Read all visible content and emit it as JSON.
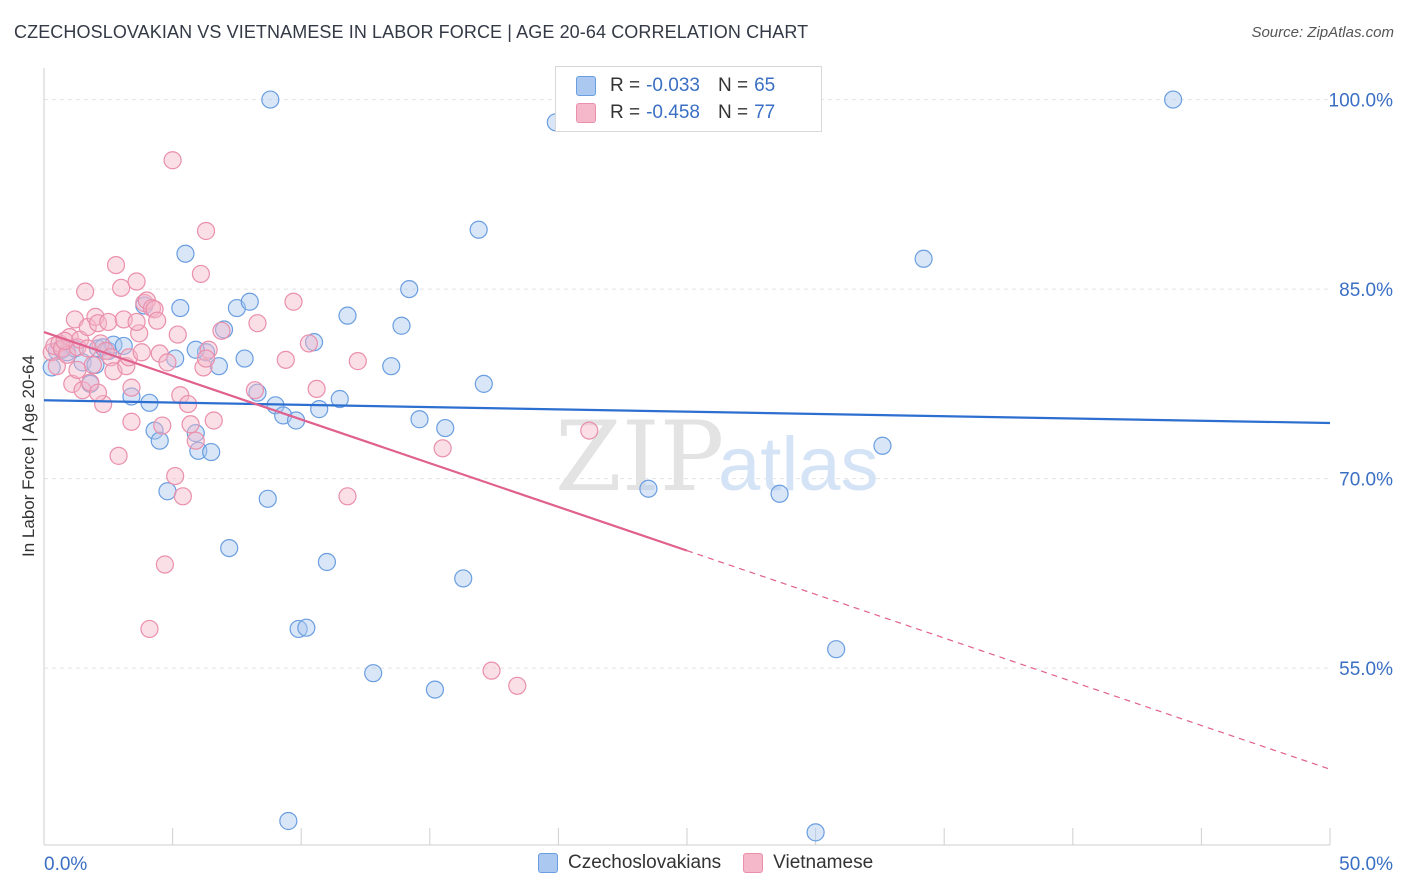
{
  "header": {
    "title": "CZECHOSLOVAKIAN VS VIETNAMESE IN LABOR FORCE | AGE 20-64 CORRELATION CHART",
    "source": "Source: ZipAtlas.com"
  },
  "legend": {
    "czech": {
      "r_label": "R =",
      "r_value": "-0.033",
      "n_label": "N =",
      "n_value": "65"
    },
    "viet": {
      "r_label": "R =",
      "r_value": "-0.458",
      "n_label": "N =",
      "n_value": "77"
    }
  },
  "bottom_legend": {
    "czech": "Czechoslovakians",
    "viet": "Vietnamese"
  },
  "colors": {
    "czech_fill": "#aac8f0",
    "czech_stroke": "#6a9ee0",
    "czech_line": "#2d6fd0",
    "viet_fill": "#f5b7ca",
    "viet_stroke": "#ea8fac",
    "viet_line": "#e0608e",
    "axis_text": "#3a6fc4",
    "grid": "#e2e2e2"
  },
  "watermark": {
    "part1": "ZIP",
    "part2": "atlas"
  },
  "chart_data": {
    "type": "scatter",
    "title": "CZECHOSLOVAKIAN VS VIETNAMESE IN LABOR FORCE | AGE 20-64 CORRELATION CHART",
    "xlabel": "",
    "ylabel": "In Labor Force | Age 20-64",
    "xlim": [
      0,
      50
    ],
    "ylim": [
      41,
      102.5
    ],
    "x_tick_labels": [
      "0.0%",
      "50.0%"
    ],
    "y_ticks": [
      55,
      70,
      85,
      100
    ],
    "y_tick_labels": [
      "55.0%",
      "70.0%",
      "85.0%",
      "100.0%"
    ],
    "series": [
      {
        "name": "Czechoslovakians",
        "r": -0.033,
        "n": 65,
        "trend": {
          "x0": 0,
          "y0": 76.2,
          "x1": 50,
          "y1": 74.4,
          "dashed_from": null
        },
        "points": [
          [
            0.3,
            78.8
          ],
          [
            0.5,
            80.1
          ],
          [
            0.7,
            80.2
          ],
          [
            0.9,
            80.0
          ],
          [
            1.2,
            80.3
          ],
          [
            1.5,
            79.2
          ],
          [
            1.8,
            77.5
          ],
          [
            2.0,
            79.0
          ],
          [
            2.1,
            80.3
          ],
          [
            2.3,
            80.4
          ],
          [
            2.5,
            80.1
          ],
          [
            2.7,
            80.6
          ],
          [
            3.1,
            80.5
          ],
          [
            3.4,
            76.5
          ],
          [
            3.9,
            83.7
          ],
          [
            4.1,
            76.0
          ],
          [
            4.3,
            73.8
          ],
          [
            4.5,
            73.0
          ],
          [
            4.8,
            69.0
          ],
          [
            5.1,
            79.5
          ],
          [
            5.3,
            83.5
          ],
          [
            5.5,
            87.8
          ],
          [
            5.9,
            73.6
          ],
          [
            6.0,
            72.2
          ],
          [
            6.3,
            80.0
          ],
          [
            6.5,
            72.1
          ],
          [
            6.8,
            78.9
          ],
          [
            7.0,
            81.8
          ],
          [
            7.2,
            64.5
          ],
          [
            7.5,
            83.5
          ],
          [
            7.8,
            79.5
          ],
          [
            8.0,
            84.0
          ],
          [
            8.3,
            76.8
          ],
          [
            8.7,
            68.4
          ],
          [
            8.8,
            100.0
          ],
          [
            9.0,
            75.8
          ],
          [
            9.3,
            75.0
          ],
          [
            9.5,
            42.9
          ],
          [
            9.8,
            74.6
          ],
          [
            9.9,
            58.1
          ],
          [
            10.2,
            58.2
          ],
          [
            10.5,
            80.8
          ],
          [
            10.7,
            75.5
          ],
          [
            11.0,
            63.4
          ],
          [
            11.5,
            76.3
          ],
          [
            11.8,
            82.9
          ],
          [
            12.8,
            54.6
          ],
          [
            13.5,
            78.9
          ],
          [
            13.9,
            82.1
          ],
          [
            14.2,
            85.0
          ],
          [
            14.6,
            74.7
          ],
          [
            15.2,
            53.3
          ],
          [
            15.6,
            74.0
          ],
          [
            16.3,
            62.1
          ],
          [
            16.9,
            89.7
          ],
          [
            17.1,
            77.5
          ],
          [
            19.9,
            98.2
          ],
          [
            23.5,
            69.2
          ],
          [
            28.6,
            68.8
          ],
          [
            30.0,
            42.0
          ],
          [
            30.8,
            56.5
          ],
          [
            32.6,
            72.6
          ],
          [
            34.2,
            87.4
          ],
          [
            43.9,
            100.0
          ],
          [
            5.9,
            80.2
          ]
        ]
      },
      {
        "name": "Vietnamese",
        "r": -0.458,
        "n": 77,
        "trend": {
          "x0": 0,
          "y0": 81.6,
          "x1": 50,
          "y1": 47.0,
          "dashed_from": 25.0
        },
        "points": [
          [
            0.3,
            80.0
          ],
          [
            0.4,
            80.5
          ],
          [
            0.5,
            78.9
          ],
          [
            0.6,
            80.7
          ],
          [
            0.7,
            80.3
          ],
          [
            0.9,
            79.8
          ],
          [
            1.0,
            81.2
          ],
          [
            1.1,
            77.5
          ],
          [
            1.2,
            82.6
          ],
          [
            1.3,
            80.4
          ],
          [
            1.4,
            81.0
          ],
          [
            1.5,
            77.0
          ],
          [
            1.6,
            84.8
          ],
          [
            1.7,
            82.0
          ],
          [
            1.8,
            77.6
          ],
          [
            1.9,
            79.0
          ],
          [
            2.0,
            82.8
          ],
          [
            2.1,
            82.3
          ],
          [
            2.2,
            80.7
          ],
          [
            2.3,
            75.9
          ],
          [
            2.4,
            80.1
          ],
          [
            2.5,
            82.4
          ],
          [
            2.6,
            79.6
          ],
          [
            2.7,
            78.5
          ],
          [
            2.8,
            86.9
          ],
          [
            2.9,
            71.8
          ],
          [
            3.0,
            85.1
          ],
          [
            3.1,
            82.6
          ],
          [
            3.2,
            78.9
          ],
          [
            3.3,
            79.6
          ],
          [
            3.4,
            77.2
          ],
          [
            3.4,
            74.5
          ],
          [
            3.6,
            85.6
          ],
          [
            3.7,
            81.5
          ],
          [
            3.8,
            80.0
          ],
          [
            3.9,
            83.9
          ],
          [
            4.0,
            84.1
          ],
          [
            4.2,
            83.5
          ],
          [
            4.3,
            83.4
          ],
          [
            4.4,
            82.5
          ],
          [
            4.5,
            79.9
          ],
          [
            4.6,
            74.2
          ],
          [
            4.7,
            63.2
          ],
          [
            4.8,
            79.2
          ],
          [
            5.0,
            95.2
          ],
          [
            5.1,
            70.2
          ],
          [
            5.2,
            81.4
          ],
          [
            5.3,
            76.6
          ],
          [
            5.4,
            68.6
          ],
          [
            5.6,
            75.9
          ],
          [
            5.7,
            74.3
          ],
          [
            5.9,
            73.0
          ],
          [
            6.1,
            86.2
          ],
          [
            6.2,
            78.8
          ],
          [
            6.3,
            89.6
          ],
          [
            6.4,
            80.2
          ],
          [
            6.6,
            74.6
          ],
          [
            6.9,
            81.7
          ],
          [
            8.2,
            77.0
          ],
          [
            8.3,
            82.3
          ],
          [
            9.4,
            79.4
          ],
          [
            9.7,
            84.0
          ],
          [
            10.3,
            80.7
          ],
          [
            10.6,
            77.1
          ],
          [
            11.8,
            68.6
          ],
          [
            12.2,
            79.3
          ],
          [
            15.5,
            72.4
          ],
          [
            17.4,
            54.8
          ],
          [
            18.4,
            53.6
          ],
          [
            21.2,
            73.8
          ],
          [
            1.3,
            78.6
          ],
          [
            2.1,
            76.8
          ],
          [
            0.8,
            80.9
          ],
          [
            1.7,
            80.3
          ],
          [
            3.6,
            82.4
          ],
          [
            4.1,
            58.1
          ],
          [
            6.3,
            79.5
          ]
        ]
      }
    ]
  }
}
